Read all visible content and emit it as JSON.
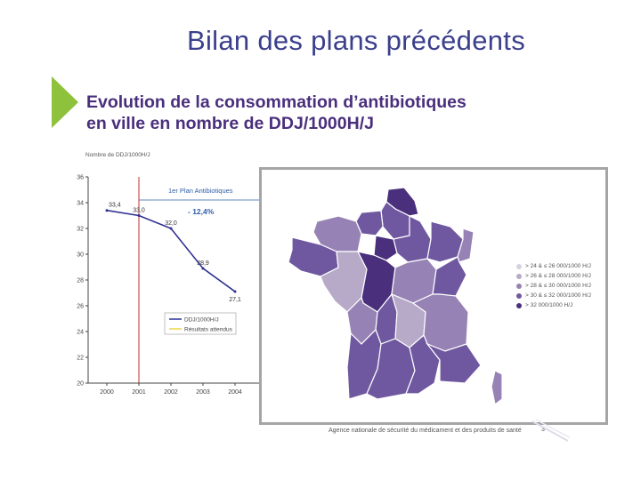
{
  "slide": {
    "title": "Bilan des plans précédents",
    "subtitle_line1": "Evolution de la consommation d’antibiotiques",
    "subtitle_line2": "en ville en nombre de DDJ/1000H/J"
  },
  "chart_data": {
    "type": "line",
    "ylabel": "Nombre de DDJ/1000H/J",
    "ylim": [
      20,
      36
    ],
    "yticks": [
      "36",
      "34",
      "32",
      "30",
      "28",
      "26",
      "24",
      "22",
      "20"
    ],
    "categories": [
      "2000",
      "2001",
      "2002",
      "2003",
      "2004"
    ],
    "series": [
      {
        "name": "DDJ/1000H/J",
        "values": [
          33.4,
          33.0,
          32.0,
          28.9,
          27.1
        ],
        "labels": [
          "33,4",
          "33,0",
          "32,0",
          "28,9",
          "27,1"
        ],
        "color": "#2e3192"
      },
      {
        "name": "Résultats attendus",
        "color": "#e8d94a"
      }
    ],
    "annotations": {
      "plan_label": "1er Plan Antibiotiques",
      "change": "- 12,4%"
    },
    "colors": {
      "axis": "#444444",
      "annotation": "#2e5ea8",
      "plan_line": "#c0302e",
      "grid": "#d9d9d9"
    }
  },
  "map": {
    "legend": [
      {
        "label": "> 24 & ≤ 26 000/1000 H/J",
        "color": "#d6d1df"
      },
      {
        "label": "> 26 & ≤ 28 000/1000 H/J",
        "color": "#b6aac8"
      },
      {
        "label": "> 28 & ≤ 30 000/1000 H/J",
        "color": "#9682b4"
      },
      {
        "label": "> 30 & ≤ 32 000/1000 H/J",
        "color": "#6f58a0"
      },
      {
        "label": "> 32 000/1000 H/J",
        "color": "#4a2f7c"
      }
    ],
    "border_color": "#ffffff",
    "footer": "Agence nationale de sécurité du médicament et des produits de santé",
    "page_number": "3"
  }
}
